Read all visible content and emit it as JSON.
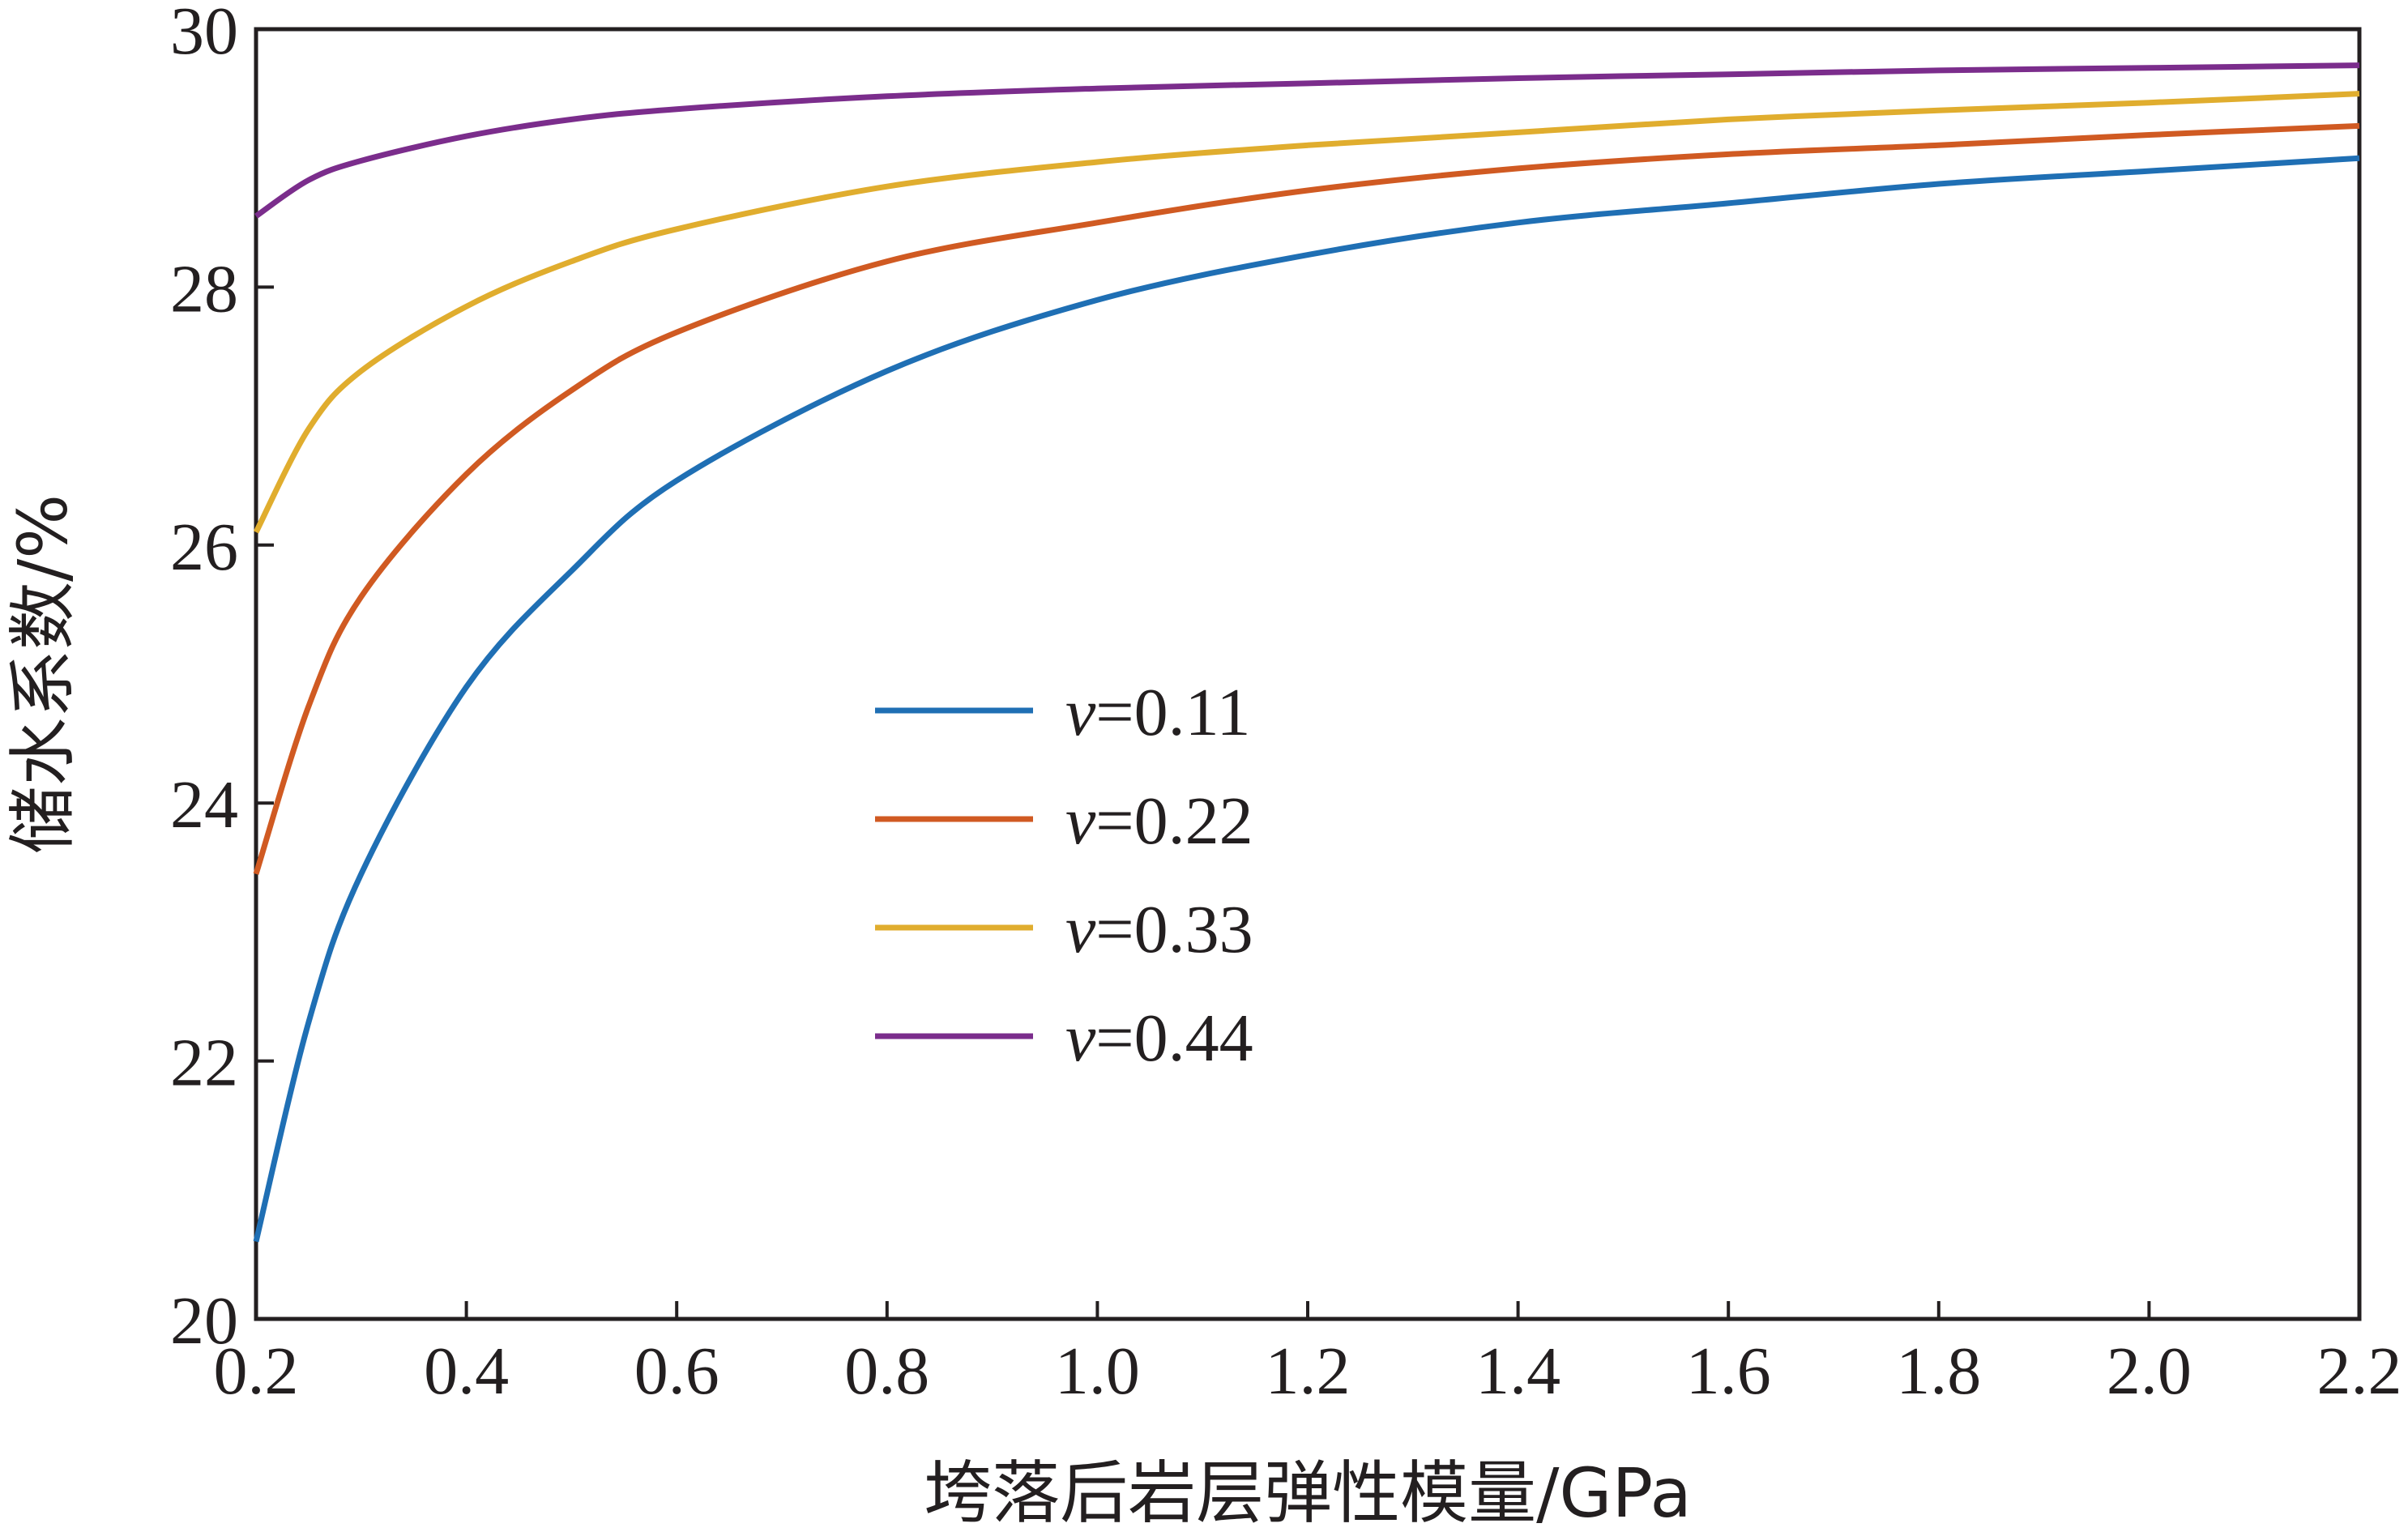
{
  "chart_data": {
    "type": "line",
    "xlabel": "垮落后岩层弹性模量/GPa",
    "ylabel": "储水系数/%",
    "xlim": [
      0.2,
      2.2
    ],
    "ylim": [
      20,
      30
    ],
    "xticks": [
      0.2,
      0.4,
      0.6,
      0.8,
      1.0,
      1.2,
      1.4,
      1.6,
      1.8,
      2.0,
      2.2
    ],
    "xtick_labels": [
      "0.2",
      "0.4",
      "0.6",
      "0.8",
      "1.0",
      "1.2",
      "1.4",
      "1.6",
      "1.8",
      "2.0",
      "2.2"
    ],
    "yticks": [
      20,
      22,
      24,
      26,
      28,
      30
    ],
    "ytick_labels": [
      "20",
      "22",
      "24",
      "26",
      "28",
      "30"
    ],
    "grid": false,
    "legend_position": "center",
    "x": [
      0.2,
      0.25,
      0.3,
      0.4,
      0.5,
      0.6,
      0.8,
      1.0,
      1.2,
      1.4,
      1.6,
      1.8,
      2.0,
      2.2
    ],
    "series": [
      {
        "name": "v=0.11",
        "legend_var": "v",
        "legend_value": "=0.11",
        "color": "#1f6fb4",
        "values": [
          20.6,
          22.3,
          23.45,
          24.9,
          25.8,
          26.5,
          27.35,
          27.9,
          28.25,
          28.5,
          28.65,
          28.8,
          28.9,
          29.0
        ]
      },
      {
        "name": "v=0.22",
        "legend_var": "v",
        "legend_value": "=0.22",
        "color": "#d05a22",
        "values": [
          23.45,
          24.75,
          25.6,
          26.55,
          27.2,
          27.65,
          28.2,
          28.5,
          28.75,
          28.92,
          29.03,
          29.1,
          29.18,
          29.25
        ]
      },
      {
        "name": "v=0.33",
        "legend_var": "v",
        "legend_value": "=0.33",
        "color": "#e0ad2e",
        "values": [
          26.1,
          26.9,
          27.35,
          27.85,
          28.2,
          28.45,
          28.78,
          28.97,
          29.1,
          29.2,
          29.3,
          29.37,
          29.43,
          29.5
        ]
      },
      {
        "name": "v=0.44",
        "legend_var": "v",
        "legend_value": "=0.44",
        "color": "#7b2d8c",
        "values": [
          28.55,
          28.83,
          28.98,
          29.17,
          29.3,
          29.38,
          29.48,
          29.54,
          29.58,
          29.62,
          29.65,
          29.68,
          29.7,
          29.72
        ]
      }
    ]
  }
}
